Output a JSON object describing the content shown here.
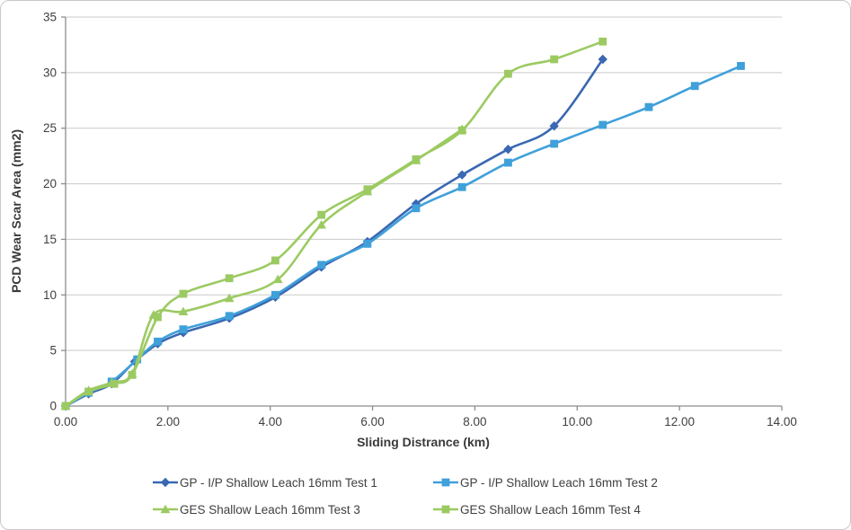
{
  "chart_data": {
    "type": "line",
    "title": "",
    "xlabel": "Sliding Distrance (km)",
    "ylabel": "PCD Wear Scar Area (mm2)",
    "xlim": [
      0,
      14
    ],
    "ylim": [
      0,
      35
    ],
    "xticks": [
      {
        "value": 0,
        "label": "0.00"
      },
      {
        "value": 2,
        "label": "2.00"
      },
      {
        "value": 4,
        "label": "4.00"
      },
      {
        "value": 6,
        "label": "6.00"
      },
      {
        "value": 8,
        "label": "8.00"
      },
      {
        "value": 10,
        "label": "10.00"
      },
      {
        "value": 12,
        "label": "12.00"
      },
      {
        "value": 14,
        "label": "14.00"
      }
    ],
    "yticks": [
      {
        "value": 0,
        "label": "0"
      },
      {
        "value": 5,
        "label": "5"
      },
      {
        "value": 10,
        "label": "10"
      },
      {
        "value": 15,
        "label": "15"
      },
      {
        "value": 20,
        "label": "20"
      },
      {
        "value": 25,
        "label": "25"
      },
      {
        "value": 30,
        "label": "30"
      },
      {
        "value": 35,
        "label": "35"
      }
    ],
    "grid": "horizontal",
    "legend_position": "bottom",
    "colors": {
      "gridline": "#c9c9c9",
      "axis_line": "#8c8c8c",
      "text": "#3f3f3f"
    },
    "series": [
      {
        "name": "GP - I/P Shallow Leach 16mm Test 1",
        "color": "#3a68b2",
        "marker": "diamond",
        "x": [
          0,
          0.45,
          0.9,
          1.35,
          1.8,
          2.3,
          3.2,
          4.1,
          5.0,
          5.9,
          6.85,
          7.75,
          8.65,
          9.55,
          10.5
        ],
        "y": [
          0,
          1.1,
          2.0,
          4.0,
          5.6,
          6.6,
          7.9,
          9.8,
          12.5,
          14.8,
          18.2,
          20.8,
          23.1,
          25.2,
          31.2
        ]
      },
      {
        "name": "GP - I/P Shallow Leach 16mm Test 2",
        "color": "#3fa0da",
        "marker": "square",
        "x": [
          0,
          0.45,
          0.9,
          1.4,
          1.8,
          2.3,
          3.2,
          4.1,
          5.0,
          5.9,
          6.85,
          7.75,
          8.65,
          9.55,
          10.5,
          11.4,
          12.3,
          13.2
        ],
        "y": [
          0,
          1.2,
          2.2,
          4.2,
          5.8,
          6.9,
          8.1,
          10.0,
          12.7,
          14.6,
          17.8,
          19.7,
          21.9,
          23.6,
          25.3,
          26.9,
          28.8,
          30.6
        ]
      },
      {
        "name": "GES Shallow Leach 16mm Test 3",
        "color": "#9cca62",
        "marker": "triangle",
        "x": [
          0,
          0.45,
          0.9,
          1.3,
          1.72,
          2.3,
          3.2,
          4.15,
          5.0,
          5.9,
          6.85,
          7.75
        ],
        "y": [
          0,
          1.4,
          2.1,
          2.9,
          8.2,
          8.5,
          9.7,
          11.4,
          16.3,
          19.3,
          22.1,
          24.9
        ]
      },
      {
        "name": "GES Shallow Leach 16mm Test 4",
        "color": "#9cca62",
        "marker": "square",
        "x": [
          0,
          0.45,
          0.95,
          1.3,
          1.8,
          2.3,
          3.2,
          4.1,
          5.0,
          5.9,
          6.85,
          7.75,
          8.65,
          9.55,
          10.5
        ],
        "y": [
          0,
          1.3,
          2.0,
          2.8,
          8.0,
          10.1,
          11.5,
          13.1,
          17.2,
          19.5,
          22.2,
          24.8,
          29.9,
          31.2,
          32.8
        ]
      }
    ]
  }
}
